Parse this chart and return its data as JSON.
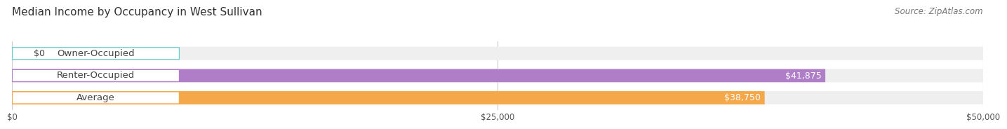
{
  "title": "Median Income by Occupancy in West Sullivan",
  "source": "Source: ZipAtlas.com",
  "categories": [
    "Owner-Occupied",
    "Renter-Occupied",
    "Average"
  ],
  "values": [
    0,
    41875,
    38750
  ],
  "bar_colors": [
    "#5ec8c8",
    "#b07ec8",
    "#f5a84a"
  ],
  "bar_bg_color": "#efefef",
  "value_labels": [
    "$0",
    "$41,875",
    "$38,750"
  ],
  "xlim": [
    0,
    50000
  ],
  "xticks": [
    0,
    25000,
    50000
  ],
  "xtick_labels": [
    "$0",
    "$25,000",
    "$50,000"
  ],
  "bar_height": 0.58,
  "title_fontsize": 11,
  "source_fontsize": 8.5,
  "label_fontsize": 9.5,
  "value_fontsize": 9,
  "background_color": "#ffffff",
  "grid_color": "#cccccc"
}
